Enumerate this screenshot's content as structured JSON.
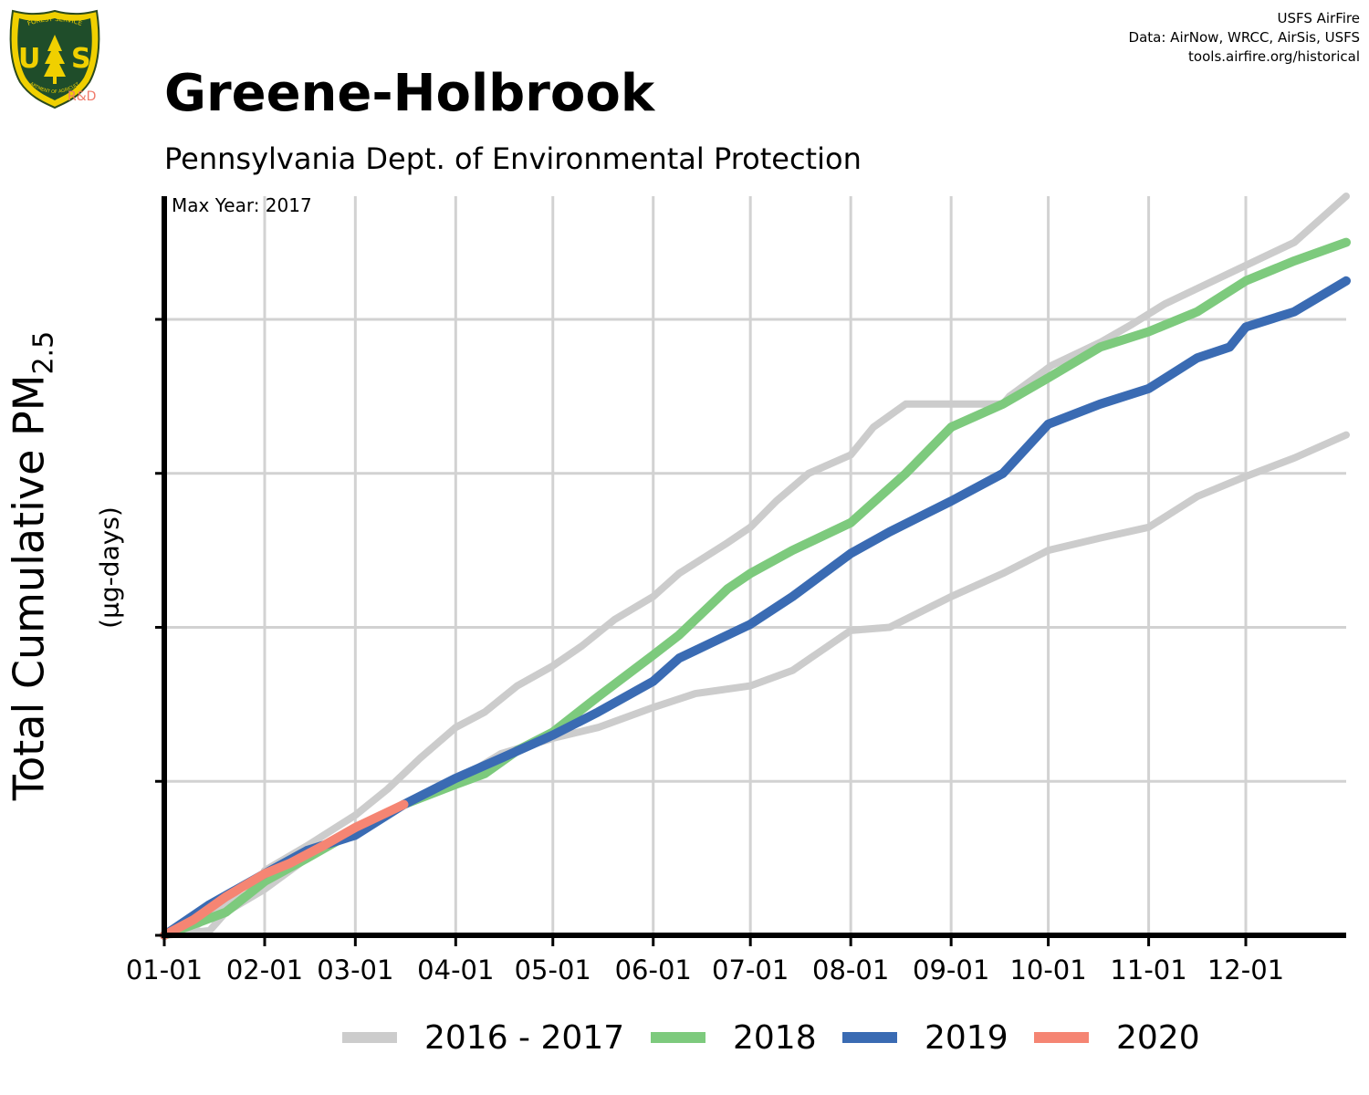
{
  "header": {
    "title": "Greene-Holbrook",
    "subtitle": "Pennsylvania Dept. of Environmental Protection",
    "credits": [
      "USFS AirFire",
      "Data: AirNow, WRCC, AirSis, USFS",
      "tools.airfire.org/historical"
    ],
    "logo": {
      "top_text": "FOREST SERVICE",
      "shield_text": "USFS",
      "bottom_text": "DEPARTMENT OF AGRICULTURE",
      "badge": "R&D",
      "icon": "usfs-shield-icon"
    }
  },
  "annotation": {
    "max_year": "Max Year: 2017"
  },
  "y_axis": {
    "label": "Total Cumulative PM",
    "label_sub": "2.5",
    "units": "(µg-days)"
  },
  "colors": {
    "2016 - 2017": "#cccccc",
    "2018": "#7dca7d",
    "2019": "#3a6bb3",
    "2020": "#f58573",
    "grid": "#d2d2d2",
    "axis": "#000000"
  },
  "chart_data": {
    "type": "line",
    "title": "Greene-Holbrook",
    "subtitle": "Pennsylvania Dept. of Environmental Protection",
    "xlabel": "",
    "ylabel": "Total Cumulative PM2.5 (µg-days)",
    "x_unit": "day of year",
    "x_ticks": [
      "01-01",
      "02-01",
      "03-01",
      "04-01",
      "05-01",
      "06-01",
      "07-01",
      "08-01",
      "09-01",
      "10-01",
      "11-01",
      "12-01"
    ],
    "x_tick_days": [
      1,
      32,
      60,
      91,
      121,
      152,
      182,
      213,
      244,
      274,
      305,
      335
    ],
    "xlim": [
      1,
      366
    ],
    "ylim": [
      0,
      4.8
    ],
    "y_ticks": [
      0,
      1,
      2,
      3,
      4
    ],
    "y_tick_labels_shown": false,
    "grid": true,
    "legend": "bottom",
    "series": [
      {
        "name": "2016 - 2017",
        "label_key": "2016 - 2017",
        "x": [
          1,
          10,
          20,
          30,
          32,
          45,
          60,
          70,
          80,
          91,
          100,
          110,
          121,
          130,
          140,
          152,
          160,
          175,
          182,
          190,
          200,
          213,
          220,
          230,
          232,
          260,
          262,
          275,
          290,
          300,
          310,
          320,
          335,
          350,
          366
        ],
        "y": [
          0,
          0.05,
          0.2,
          0.3,
          0.42,
          0.58,
          0.78,
          0.95,
          1.15,
          1.35,
          1.45,
          1.62,
          1.75,
          1.88,
          2.05,
          2.2,
          2.35,
          2.55,
          2.65,
          2.82,
          3.0,
          3.12,
          3.3,
          3.45,
          3.45,
          3.45,
          3.5,
          3.7,
          3.85,
          3.97,
          4.1,
          4.2,
          4.35,
          4.5,
          4.8
        ]
      },
      {
        "name": "2016 - 2017",
        "label_key": "2016 - 2017",
        "x": [
          1,
          15,
          20,
          32,
          45,
          60,
          75,
          91,
          105,
          121,
          135,
          152,
          165,
          182,
          195,
          213,
          225,
          244,
          260,
          274,
          290,
          305,
          320,
          335,
          350,
          366
        ],
        "y": [
          0,
          0.03,
          0.15,
          0.3,
          0.5,
          0.7,
          0.85,
          1.0,
          1.18,
          1.28,
          1.35,
          1.48,
          1.57,
          1.62,
          1.72,
          1.98,
          2.0,
          2.2,
          2.35,
          2.5,
          2.58,
          2.65,
          2.85,
          2.98,
          3.1,
          3.25
        ]
      },
      {
        "name": "2018",
        "label_key": "2018",
        "x": [
          1,
          20,
          32,
          45,
          60,
          75,
          91,
          100,
          110,
          121,
          135,
          152,
          160,
          175,
          182,
          195,
          213,
          230,
          244,
          260,
          274,
          290,
          305,
          320,
          335,
          350,
          366
        ],
        "y": [
          0,
          0.15,
          0.35,
          0.5,
          0.68,
          0.85,
          0.98,
          1.05,
          1.2,
          1.32,
          1.55,
          1.82,
          1.95,
          2.25,
          2.35,
          2.5,
          2.68,
          3.0,
          3.3,
          3.45,
          3.62,
          3.82,
          3.92,
          4.05,
          4.25,
          4.38,
          4.5
        ]
      },
      {
        "name": "2019",
        "label_key": "2019",
        "x": [
          1,
          15,
          32,
          45,
          60,
          75,
          91,
          105,
          121,
          135,
          152,
          160,
          170,
          182,
          195,
          213,
          225,
          244,
          260,
          274,
          290,
          305,
          320,
          330,
          335,
          350,
          366
        ],
        "y": [
          0,
          0.2,
          0.4,
          0.55,
          0.65,
          0.85,
          1.02,
          1.15,
          1.3,
          1.45,
          1.65,
          1.8,
          1.9,
          2.02,
          2.2,
          2.48,
          2.62,
          2.82,
          3.0,
          3.32,
          3.45,
          3.55,
          3.75,
          3.82,
          3.95,
          4.05,
          4.25
        ]
      },
      {
        "name": "2020",
        "label_key": "2020",
        "x": [
          1,
          10,
          20,
          32,
          40,
          50,
          60,
          70,
          75
        ],
        "y": [
          0,
          0.1,
          0.25,
          0.4,
          0.47,
          0.58,
          0.7,
          0.8,
          0.85
        ]
      }
    ],
    "legend_entries": [
      "2016 - 2017",
      "2018",
      "2019",
      "2020"
    ]
  }
}
